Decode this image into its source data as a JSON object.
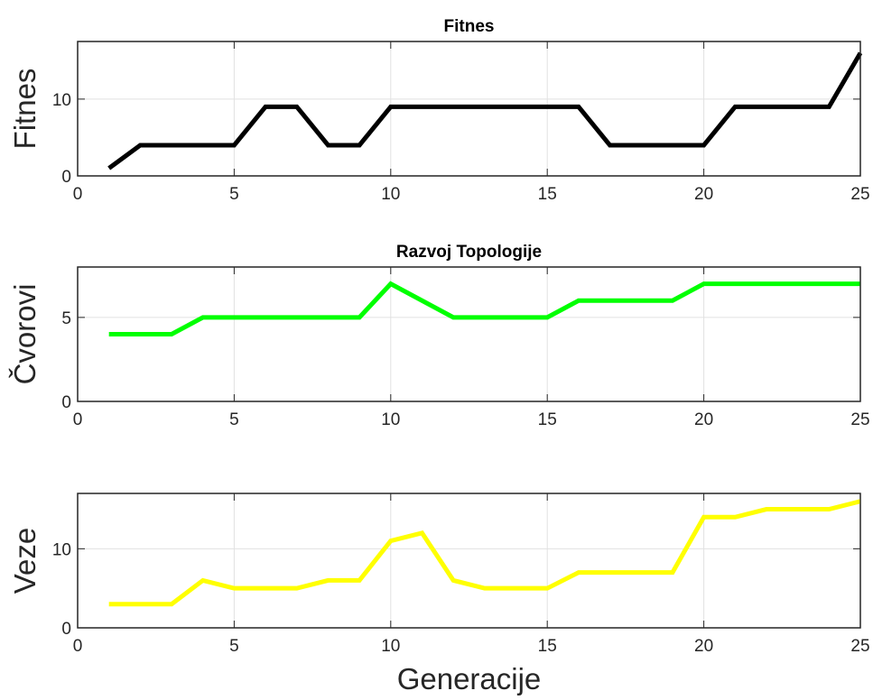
{
  "chart_data": [
    {
      "type": "line",
      "title": "Fitnes",
      "xlabel": "",
      "ylabel": "Fitnes",
      "xlim": [
        0,
        25
      ],
      "ylim": [
        0,
        17.5
      ],
      "xticks": [
        0,
        5,
        10,
        15,
        20,
        25
      ],
      "yticks": [
        0,
        10
      ],
      "grid": true,
      "color": "#000000",
      "series": [
        {
          "x": [
            1,
            2,
            3,
            4,
            5,
            6,
            7,
            8,
            9,
            10,
            11,
            12,
            13,
            14,
            15,
            16,
            17,
            18,
            19,
            20,
            21,
            22,
            23,
            24,
            25
          ],
          "values": [
            1,
            4,
            4,
            4,
            4,
            9,
            9,
            4,
            4,
            9,
            9,
            9,
            9,
            9,
            9,
            9,
            4,
            4,
            4,
            4,
            9,
            9,
            9,
            9,
            16
          ]
        }
      ]
    },
    {
      "type": "line",
      "title": "Razvoj Topologije",
      "xlabel": "",
      "ylabel": "Čvorovi",
      "xlim": [
        0,
        25
      ],
      "ylim": [
        0,
        8
      ],
      "xticks": [
        0,
        5,
        10,
        15,
        20,
        25
      ],
      "yticks": [
        0,
        5
      ],
      "grid": true,
      "color": "#00ff00",
      "series": [
        {
          "x": [
            1,
            2,
            3,
            4,
            5,
            6,
            7,
            8,
            9,
            10,
            11,
            12,
            13,
            14,
            15,
            16,
            17,
            18,
            19,
            20,
            21,
            22,
            23,
            24,
            25
          ],
          "values": [
            4,
            4,
            4,
            5,
            5,
            5,
            5,
            5,
            5,
            7,
            6,
            5,
            5,
            5,
            5,
            6,
            6,
            6,
            6,
            7,
            7,
            7,
            7,
            7,
            7
          ]
        }
      ]
    },
    {
      "type": "line",
      "title": "",
      "xlabel": "Generacije",
      "ylabel": "Veze",
      "xlim": [
        0,
        25
      ],
      "ylim": [
        0,
        17
      ],
      "xticks": [
        0,
        5,
        10,
        15,
        20,
        25
      ],
      "yticks": [
        0,
        10
      ],
      "grid": true,
      "color": "#ffff00",
      "series": [
        {
          "x": [
            1,
            2,
            3,
            4,
            5,
            6,
            7,
            8,
            9,
            10,
            11,
            12,
            13,
            14,
            15,
            16,
            17,
            18,
            19,
            20,
            21,
            22,
            23,
            24,
            25
          ],
          "values": [
            3,
            3,
            3,
            6,
            5,
            5,
            5,
            6,
            6,
            11,
            12,
            6,
            5,
            5,
            5,
            7,
            7,
            7,
            7,
            14,
            14,
            15,
            15,
            15,
            16
          ]
        }
      ]
    }
  ]
}
